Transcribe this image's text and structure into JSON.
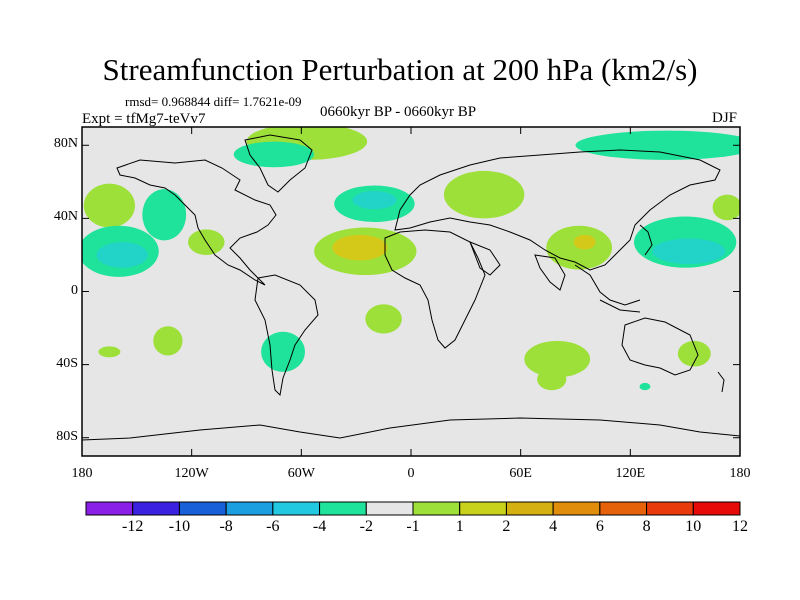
{
  "title": "Streamfunction Perturbation at 200 hPa (km2/s)",
  "stats_line": "rmsd= 0.968844 diff= 1.7621e-09",
  "experiment": "Expt = tfMg7-teVv7",
  "period": "0660kyr BP - 0660kyr BP",
  "season": "DJF",
  "map": {
    "lat_ticks": [
      {
        "value": 80,
        "label": "80N"
      },
      {
        "value": 40,
        "label": "40N"
      },
      {
        "value": 0,
        "label": "0"
      },
      {
        "value": -40,
        "label": "40S"
      },
      {
        "value": -80,
        "label": "80S"
      }
    ],
    "lon_ticks": [
      {
        "value": -180,
        "label": "180"
      },
      {
        "value": -120,
        "label": "120W"
      },
      {
        "value": -60,
        "label": "60W"
      },
      {
        "value": 0,
        "label": "0"
      },
      {
        "value": 60,
        "label": "60E"
      },
      {
        "value": 120,
        "label": "120E"
      },
      {
        "value": 180,
        "label": "180"
      }
    ],
    "background_color": "#e6e6e6",
    "anomalies": [
      {
        "lon": -165,
        "lat": 47,
        "rx": 14,
        "ry": 12,
        "color": "#9ee03a"
      },
      {
        "lon": -160,
        "lat": 22,
        "rx": 22,
        "ry": 14,
        "color": "#1fe39a"
      },
      {
        "lon": -158,
        "lat": 20,
        "rx": 14,
        "ry": 7,
        "color": "#22d3c8"
      },
      {
        "lon": -135,
        "lat": 42,
        "rx": 12,
        "ry": 14,
        "color": "#1fe39a"
      },
      {
        "lon": -112,
        "lat": 27,
        "rx": 10,
        "ry": 7,
        "color": "#9ee03a"
      },
      {
        "lon": -133,
        "lat": -27,
        "rx": 8,
        "ry": 8,
        "color": "#9ee03a"
      },
      {
        "lon": -165,
        "lat": -33,
        "rx": 6,
        "ry": 3,
        "color": "#9ee03a"
      },
      {
        "lon": -70,
        "lat": -33,
        "rx": 12,
        "ry": 11,
        "color": "#1fe39a"
      },
      {
        "lon": -57,
        "lat": 82,
        "rx": 33,
        "ry": 10,
        "color": "#9ee03a"
      },
      {
        "lon": -75,
        "lat": 75,
        "rx": 22,
        "ry": 7,
        "color": "#1fe39a"
      },
      {
        "lon": -20,
        "lat": 48,
        "rx": 22,
        "ry": 10,
        "color": "#1fe39a"
      },
      {
        "lon": -20,
        "lat": 50,
        "rx": 12,
        "ry": 5,
        "color": "#22d3c8"
      },
      {
        "lon": -25,
        "lat": 22,
        "rx": 28,
        "ry": 13,
        "color": "#9ee03a"
      },
      {
        "lon": -28,
        "lat": 24,
        "rx": 15,
        "ry": 7,
        "color": "#d4c818"
      },
      {
        "lon": -15,
        "lat": -15,
        "rx": 10,
        "ry": 8,
        "color": "#9ee03a"
      },
      {
        "lon": 40,
        "lat": 53,
        "rx": 22,
        "ry": 13,
        "color": "#9ee03a"
      },
      {
        "lon": 92,
        "lat": 24,
        "rx": 18,
        "ry": 12,
        "color": "#9ee03a"
      },
      {
        "lon": 95,
        "lat": 27,
        "rx": 6,
        "ry": 4,
        "color": "#d4c818"
      },
      {
        "lon": 80,
        "lat": -37,
        "rx": 18,
        "ry": 10,
        "color": "#9ee03a"
      },
      {
        "lon": 77,
        "lat": -48,
        "rx": 8,
        "ry": 6,
        "color": "#9ee03a"
      },
      {
        "lon": 150,
        "lat": 27,
        "rx": 28,
        "ry": 14,
        "color": "#1fe39a"
      },
      {
        "lon": 152,
        "lat": 22,
        "rx": 20,
        "ry": 7,
        "color": "#22d3c8"
      },
      {
        "lon": 140,
        "lat": 80,
        "rx": 50,
        "ry": 8,
        "color": "#1fe39a"
      },
      {
        "lon": 173,
        "lat": 46,
        "rx": 8,
        "ry": 7,
        "color": "#9ee03a"
      },
      {
        "lon": 155,
        "lat": -34,
        "rx": 9,
        "ry": 7,
        "color": "#9ee03a"
      },
      {
        "lon": 128,
        "lat": -52,
        "rx": 3,
        "ry": 2,
        "color": "#1fe39a"
      }
    ]
  },
  "colorbar": {
    "colors": [
      "#8a1fe8",
      "#3b22e0",
      "#1760d8",
      "#1b9fe0",
      "#22c8e0",
      "#1fe39a",
      "#e6e6e6",
      "#9ee03a",
      "#c8d21a",
      "#d4b010",
      "#df8d0a",
      "#e5620a",
      "#e83a0a",
      "#e60b08"
    ],
    "labels": [
      "-12",
      "-10",
      "-8",
      "-6",
      "-4",
      "-2",
      "-1",
      "1",
      "2",
      "4",
      "6",
      "8",
      "10",
      "12"
    ]
  }
}
